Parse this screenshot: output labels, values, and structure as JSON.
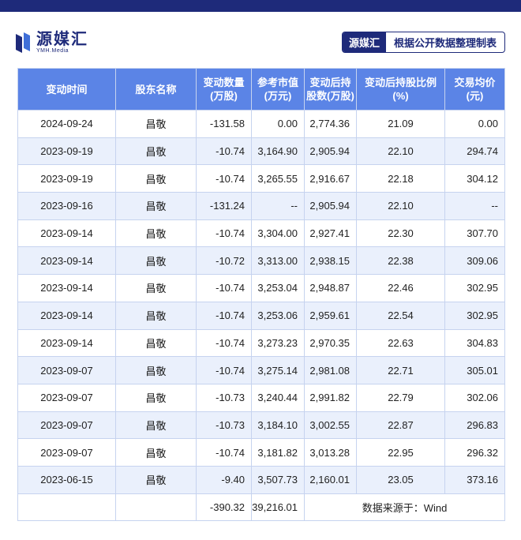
{
  "brand": {
    "logo_name": "源媒汇",
    "logo_sub": "YMH.Media",
    "tag_brand": "源媒汇",
    "tag_desc": "根据公开数据整理制表"
  },
  "table": {
    "headers": [
      [
        "变动时间"
      ],
      [
        "股东名称"
      ],
      [
        "变动数量",
        "(万股)"
      ],
      [
        "参考市值",
        "(万元)"
      ],
      [
        "变动后持",
        "股数(万股)"
      ],
      [
        "变动后持股比例",
        "(%)"
      ],
      [
        "交易均价",
        "(元)"
      ]
    ],
    "rows": [
      [
        "2024-09-24",
        "昌敬",
        "-131.58",
        "0.00",
        "2,774.36",
        "21.09",
        "0.00"
      ],
      [
        "2023-09-19",
        "昌敬",
        "-10.74",
        "3,164.90",
        "2,905.94",
        "22.10",
        "294.74"
      ],
      [
        "2023-09-19",
        "昌敬",
        "-10.74",
        "3,265.55",
        "2,916.67",
        "22.18",
        "304.12"
      ],
      [
        "2023-09-16",
        "昌敬",
        "-131.24",
        "--",
        "2,905.94",
        "22.10",
        "--"
      ],
      [
        "2023-09-14",
        "昌敬",
        "-10.74",
        "3,304.00",
        "2,927.41",
        "22.30",
        "307.70"
      ],
      [
        "2023-09-14",
        "昌敬",
        "-10.72",
        "3,313.00",
        "2,938.15",
        "22.38",
        "309.06"
      ],
      [
        "2023-09-14",
        "昌敬",
        "-10.74",
        "3,253.04",
        "2,948.87",
        "22.46",
        "302.95"
      ],
      [
        "2023-09-14",
        "昌敬",
        "-10.74",
        "3,253.06",
        "2,959.61",
        "22.54",
        "302.95"
      ],
      [
        "2023-09-14",
        "昌敬",
        "-10.74",
        "3,273.23",
        "2,970.35",
        "22.63",
        "304.83"
      ],
      [
        "2023-09-07",
        "昌敬",
        "-10.74",
        "3,275.14",
        "2,981.08",
        "22.71",
        "305.01"
      ],
      [
        "2023-09-07",
        "昌敬",
        "-10.73",
        "3,240.44",
        "2,991.82",
        "22.79",
        "302.06"
      ],
      [
        "2023-09-07",
        "昌敬",
        "-10.73",
        "3,184.10",
        "3,002.55",
        "22.87",
        "296.83"
      ],
      [
        "2023-09-07",
        "昌敬",
        "-10.74",
        "3,181.82",
        "3,013.28",
        "22.95",
        "296.32"
      ],
      [
        "2023-06-15",
        "昌敬",
        "-9.40",
        "3,507.73",
        "2,160.01",
        "23.05",
        "373.16"
      ]
    ],
    "total": {
      "quantity": "-390.32",
      "market_value": "39,216.01",
      "source": "数据来源于：Wind"
    }
  },
  "colors": {
    "brand_navy": "#1e2a7a",
    "header_blue": "#5b84e6",
    "stripe": "#eaf0fc"
  }
}
